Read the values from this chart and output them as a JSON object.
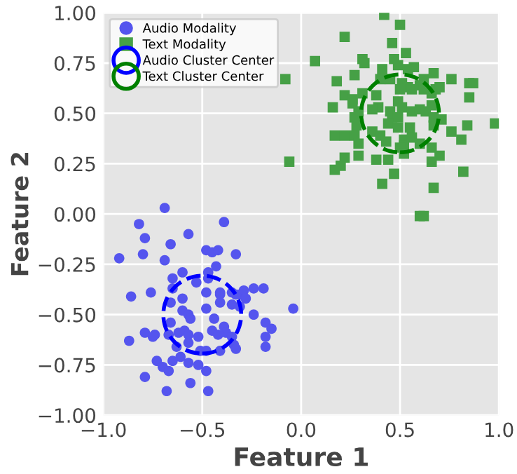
{
  "chart_data": {
    "type": "scatter",
    "xlabel": "Feature 1",
    "ylabel": "Feature 2",
    "xlim": [
      -1.0,
      1.0
    ],
    "xticks": [
      {
        "value": -1.0,
        "label": "−1.0"
      },
      {
        "value": -0.5,
        "label": "−0.5"
      },
      {
        "value": 0.0,
        "label": "0.0"
      },
      {
        "value": 0.5,
        "label": "0.5"
      },
      {
        "value": 1.0,
        "label": "1.0"
      }
    ],
    "ylim": [
      -1.0,
      1.0
    ],
    "yticks": [
      {
        "value": -1.0,
        "label": "−1.00"
      },
      {
        "value": -0.75,
        "label": "−0.75"
      },
      {
        "value": -0.5,
        "label": "−0.50"
      },
      {
        "value": -0.25,
        "label": "−0.25"
      },
      {
        "value": 0.0,
        "label": "0.00"
      },
      {
        "value": 0.25,
        "label": "0.25"
      },
      {
        "value": 0.5,
        "label": "0.50"
      },
      {
        "value": 0.75,
        "label": "0.75"
      },
      {
        "value": 1.0,
        "label": "1.00"
      }
    ],
    "grid": true,
    "legend": "top left",
    "series": [
      {
        "name": "Audio Modality",
        "color": "#5555ee",
        "marker": "circle",
        "x": [
          -0.69,
          -0.82,
          -0.39,
          -0.79,
          -0.57,
          -0.92,
          -0.8,
          -0.66,
          -0.69,
          -0.48,
          -0.45,
          -0.42,
          -0.33,
          -0.43,
          -0.6,
          -0.47,
          -0.53,
          -0.65,
          -0.47,
          -0.86,
          -0.76,
          -0.65,
          -0.6,
          -0.41,
          -0.41,
          -0.35,
          -0.31,
          -0.29,
          -0.33,
          -0.24,
          -0.19,
          -0.28,
          -0.48,
          -0.04,
          -0.66,
          -0.48,
          -0.41,
          -0.35,
          -0.31,
          -0.6,
          -0.57,
          -0.56,
          -0.66,
          -0.44,
          -0.24,
          -0.18,
          -0.15,
          -0.18,
          -0.18,
          -0.79,
          -0.74,
          -0.75,
          -0.87,
          -0.67,
          -0.62,
          -0.59,
          -0.57,
          -0.52,
          -0.45,
          -0.39,
          -0.38,
          -0.42,
          -0.35,
          -0.34,
          -0.33,
          -0.41,
          -0.48,
          -0.51,
          -0.57,
          -0.63,
          -0.61,
          -0.65,
          -0.73,
          -0.7,
          -0.67,
          -0.57,
          -0.52,
          -0.48,
          -0.79,
          -0.56,
          -0.68,
          -0.47
        ],
        "values": [
          0.03,
          -0.05,
          -0.04,
          -0.12,
          -0.1,
          -0.22,
          -0.2,
          -0.15,
          -0.23,
          -0.18,
          -0.19,
          -0.18,
          -0.2,
          -0.26,
          -0.29,
          -0.29,
          -0.34,
          -0.32,
          -0.32,
          -0.41,
          -0.39,
          -0.37,
          -0.42,
          -0.39,
          -0.4,
          -0.39,
          -0.4,
          -0.38,
          -0.4,
          -0.37,
          -0.37,
          -0.42,
          -0.39,
          -0.47,
          -0.44,
          -0.47,
          -0.44,
          -0.45,
          -0.46,
          -0.48,
          -0.5,
          -0.52,
          -0.54,
          -0.52,
          -0.5,
          -0.54,
          -0.57,
          -0.61,
          -0.66,
          -0.59,
          -0.6,
          -0.61,
          -0.63,
          -0.6,
          -0.59,
          -0.58,
          -0.6,
          -0.61,
          -0.58,
          -0.56,
          -0.59,
          -0.6,
          -0.61,
          -0.65,
          -0.67,
          -0.68,
          -0.68,
          -0.68,
          -0.64,
          -0.66,
          -0.71,
          -0.73,
          -0.73,
          -0.76,
          -0.78,
          -0.74,
          -0.75,
          -0.78,
          -0.81,
          -0.84,
          -0.88,
          -0.88
        ]
      },
      {
        "name": "Text Modality",
        "color": "#46a046",
        "marker": "square",
        "x": [
          0.42,
          0.5,
          0.22,
          0.46,
          0.53,
          0.07,
          0.31,
          0.32,
          0.47,
          0.49,
          0.57,
          0.54,
          0.41,
          0.27,
          0.18,
          0.4,
          0.45,
          0.62,
          0.67,
          0.76,
          0.51,
          0.54,
          0.56,
          0.6,
          0.62,
          0.68,
          0.7,
          0.66,
          0.85,
          0.87,
          0.85,
          0.22,
          0.26,
          0.31,
          0.38,
          0.5,
          0.49,
          0.51,
          0.45,
          0.39,
          0.36,
          0.26,
          0.16,
          0.29,
          0.27,
          0.46,
          0.49,
          0.56,
          0.6,
          0.63,
          0.66,
          0.67,
          0.71,
          0.28,
          0.44,
          0.49,
          0.55,
          0.67,
          0.76,
          0.84,
          0.98,
          0.17,
          0.22,
          0.27,
          0.36,
          0.4,
          0.43,
          0.52,
          0.52,
          0.56,
          0.6,
          0.29,
          0.22,
          0.29,
          0.38,
          0.44,
          0.66,
          0.7,
          0.5,
          0.52,
          0.81,
          -0.06,
          0.2,
          0.17,
          0.66,
          0.82,
          0.47,
          0.41,
          0.67,
          0.6,
          0.62,
          -0.08
        ],
        "values": [
          0.99,
          0.94,
          0.88,
          0.85,
          0.8,
          0.76,
          0.77,
          0.75,
          0.77,
          0.74,
          0.73,
          0.72,
          0.72,
          0.69,
          0.66,
          0.67,
          0.67,
          0.67,
          0.7,
          0.67,
          0.65,
          0.63,
          0.62,
          0.64,
          0.62,
          0.62,
          0.63,
          0.6,
          0.65,
          0.65,
          0.58,
          0.59,
          0.57,
          0.6,
          0.59,
          0.62,
          0.56,
          0.53,
          0.51,
          0.53,
          0.52,
          0.55,
          0.53,
          0.51,
          0.48,
          0.48,
          0.48,
          0.51,
          0.52,
          0.51,
          0.54,
          0.48,
          0.47,
          0.44,
          0.45,
          0.43,
          0.43,
          0.44,
          0.41,
          0.44,
          0.45,
          0.39,
          0.39,
          0.39,
          0.41,
          0.39,
          0.36,
          0.37,
          0.34,
          0.38,
          0.35,
          0.35,
          0.28,
          0.29,
          0.27,
          0.27,
          0.33,
          0.29,
          0.33,
          0.3,
          0.37,
          0.26,
          0.24,
          0.22,
          0.26,
          0.21,
          0.2,
          0.15,
          0.13,
          -0.01,
          -0.01,
          0.67
        ]
      },
      {
        "name": "Audio Cluster Center",
        "color": "#0000ff",
        "marker": "circle",
        "line_style": "dashed",
        "x": [
          -0.5
        ],
        "values": [
          -0.5
        ]
      },
      {
        "name": "Text Cluster Center",
        "color": "#008000",
        "marker": "circle",
        "line_style": "dashed",
        "x": [
          0.5
        ],
        "values": [
          0.5
        ]
      }
    ]
  }
}
